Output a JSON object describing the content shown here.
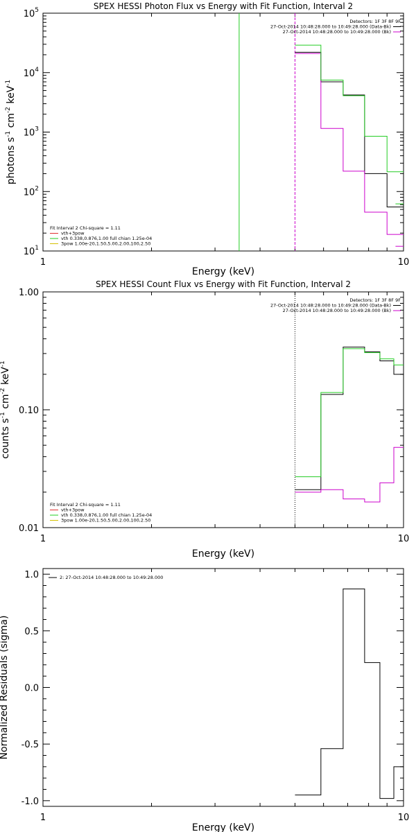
{
  "chart_data": [
    {
      "type": "line",
      "title": "SPEX HESSI Photon Flux vs Energy with Fit Function, Interval 2",
      "xlabel": "Energy (keV)",
      "ylabel_main": "photons s",
      "ylabel_parts": [
        "photons s",
        "-1",
        " cm",
        "-2",
        " keV",
        "-1"
      ],
      "xscale": "log",
      "yscale": "log",
      "xlim": [
        1,
        10
      ],
      "ylim": [
        10,
        100000
      ],
      "x_tick_labels": [
        {
          "v": 1,
          "label": "1"
        },
        {
          "v": 10,
          "label": "10"
        }
      ],
      "y_tick_labels": [
        {
          "v": 10,
          "base": "10",
          "exp": "1"
        },
        {
          "v": 100,
          "base": "10",
          "exp": "2"
        },
        {
          "v": 1000,
          "base": "10",
          "exp": "3"
        },
        {
          "v": 10000,
          "base": "10",
          "exp": "4"
        },
        {
          "v": 100000,
          "base": "10",
          "exp": "5"
        }
      ],
      "legend_topright": {
        "title": "Detectors: 1F 3F 8F 9F",
        "lines": [
          {
            "text": "27-Oct-2014 10:48:28.000 to 10:49:28.000 (Data-Bk)",
            "color": "#000000"
          },
          {
            "text": "27-Oct-2014 10:48:28.000 to 10:49:28.000 (Bk)",
            "color": "#cc00cc"
          }
        ]
      },
      "legend_bottomleft": {
        "title": "Fit Interval  2   Chi-square = 1.11",
        "lines": [
          {
            "text": "vth+3pow",
            "color": "#e03030"
          },
          {
            "text": "vth 0.338,0.876,1.00  full chian 1.25e-04",
            "color": "#22cc22"
          },
          {
            "text": "3pow 1.00e-20,1.50,5.00,2.00,100,2.50",
            "color": "#d4c000"
          }
        ]
      },
      "bin_edges": [
        5.0,
        5.9,
        6.8,
        7.8,
        9.0,
        10.0
      ],
      "series": [
        {
          "color": "#000000",
          "values": [
            22000,
            7000,
            4200,
            200,
            55
          ]
        },
        {
          "color": "#cc00cc",
          "values": [
            21000,
            1150,
            220,
            45,
            19
          ]
        },
        {
          "color": "#22cc22",
          "values": [
            29000,
            7500,
            4100,
            850,
            215
          ],
          "extra": {
            "x": [
              9.5,
              10.0
            ],
            "y": [
              62,
              62
            ]
          }
        },
        {
          "color": "#cc00cc",
          "values": [],
          "extra": {
            "x": [
              9.5,
              10.0
            ],
            "y": [
              12,
              12
            ]
          }
        }
      ],
      "vlines": [
        {
          "x": 3.5,
          "color": "#22cc22",
          "style": "solid"
        },
        {
          "x": 5.0,
          "color": "#cc00cc",
          "style": "dashed"
        }
      ]
    },
    {
      "type": "line",
      "title": "SPEX HESSI Count Flux vs Energy with Fit Function, Interval 2",
      "xlabel": "Energy (keV)",
      "ylabel_parts": [
        "counts s",
        "-1",
        " cm",
        "-2",
        " keV",
        "-1"
      ],
      "xscale": "log",
      "yscale": "log",
      "xlim": [
        1,
        10
      ],
      "ylim": [
        0.01,
        1.0
      ],
      "x_tick_labels": [
        {
          "v": 1,
          "label": "1"
        },
        {
          "v": 10,
          "label": "10"
        }
      ],
      "y_tick_labels": [
        {
          "v": 0.01,
          "label": "0.01"
        },
        {
          "v": 0.1,
          "label": "0.10"
        },
        {
          "v": 1.0,
          "label": "1.00"
        }
      ],
      "legend_topright": {
        "title": "Detectors: 1F 3F 8F 9F",
        "lines": [
          {
            "text": "27-Oct-2014 10:48:28.000 to 10:49:28.000 (Data-Bk)",
            "color": "#000000"
          },
          {
            "text": "27-Oct-2014 10:48:28.000 to 10:49:28.000 (Bk)",
            "color": "#cc00cc"
          }
        ]
      },
      "legend_bottomleft": {
        "title": "Fit Interval  2   Chi-square = 1.11",
        "lines": [
          {
            "text": "vth+3pow",
            "color": "#e03030"
          },
          {
            "text": "vth 0.338,0.876,1.00  full chian 1.25e-04",
            "color": "#22cc22"
          },
          {
            "text": "3pow 1.00e-20,1.50,5.00,2.00,100,2.50",
            "color": "#d4c000"
          }
        ]
      },
      "bin_edges": [
        5.0,
        5.9,
        6.8,
        7.8,
        9.0,
        10.0
      ],
      "series": [
        {
          "color": "#000000",
          "values": [
            0.021,
            0.135,
            0.34,
            0.31,
            0.26,
            0.2
          ],
          "edges": [
            5.0,
            5.9,
            6.8,
            7.8,
            8.6,
            9.4,
            10.0
          ]
        },
        {
          "color": "#22cc22",
          "values": [
            0.027,
            0.14,
            0.33,
            0.305,
            0.27,
            0.24
          ],
          "edges": [
            5.0,
            5.9,
            6.8,
            7.8,
            8.6,
            9.4,
            10.0
          ]
        },
        {
          "color": "#cc00cc",
          "values": [
            0.02,
            0.021,
            0.0175,
            0.0165,
            0.024,
            0.048
          ],
          "edges": [
            5.0,
            5.9,
            6.8,
            7.8,
            8.6,
            9.4,
            10.0
          ]
        }
      ],
      "vlines": [
        {
          "x": 5.0,
          "color": "#000000",
          "style": "dotted"
        }
      ]
    },
    {
      "type": "line",
      "title": "",
      "xlabel": "Energy (keV)",
      "ylabel": "Normalized Residuals (sigma)",
      "xscale": "log",
      "yscale": "linear",
      "xlim": [
        1,
        10
      ],
      "ylim": [
        -1.05,
        1.05
      ],
      "x_tick_labels": [
        {
          "v": 1,
          "label": "1"
        },
        {
          "v": 10,
          "label": "10"
        }
      ],
      "y_tick_labels": [
        {
          "v": -1.0,
          "label": "-1.0"
        },
        {
          "v": -0.5,
          "label": "-0.5"
        },
        {
          "v": 0.0,
          "label": "0.0"
        },
        {
          "v": 0.5,
          "label": "0.5"
        },
        {
          "v": 1.0,
          "label": "1.0"
        }
      ],
      "legend_topleft": {
        "lines": [
          {
            "text": "2: 27-Oct-2014 10:48:28.000 to 10:49:28.000",
            "color": "#000000"
          }
        ]
      },
      "series": [
        {
          "color": "#000000",
          "values": [
            -0.95,
            -0.54,
            0.87,
            0.22,
            -0.98,
            -0.7
          ],
          "edges": [
            5.0,
            5.9,
            6.8,
            7.8,
            8.6,
            9.4,
            10.0
          ]
        }
      ]
    }
  ]
}
